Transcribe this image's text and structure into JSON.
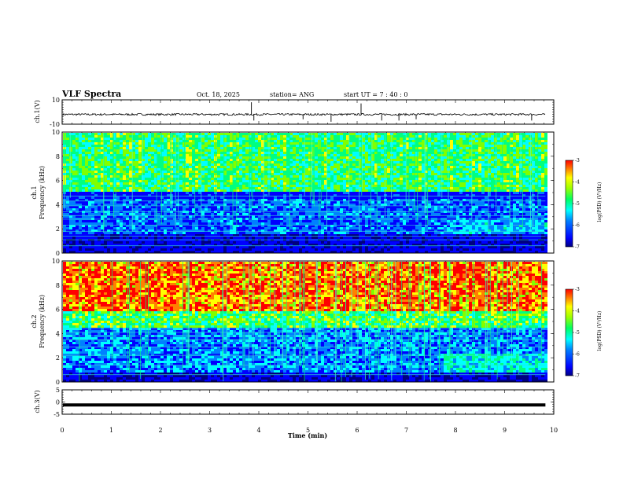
{
  "header": {
    "title": "VLF Spectra",
    "date": "Oct. 18, 2025",
    "station": "station= ANG",
    "start": "start  UT =   7 : 40 : 0"
  },
  "chart_data": [
    {
      "type": "line",
      "name": "ch1-waveform",
      "ylabel": "ch.1(V)",
      "ylim": [
        -10,
        10
      ],
      "yticks": [
        "10",
        "-10"
      ],
      "baseline": -2,
      "spikes": [
        {
          "x": 3.85,
          "y": 8
        },
        {
          "x": 3.9,
          "y": -7
        },
        {
          "x": 6.08,
          "y": 7
        },
        {
          "x": 5.47,
          "y": -8
        },
        {
          "x": 6.5,
          "y": -7
        },
        {
          "x": 6.85,
          "y": -7
        },
        {
          "x": 7.2,
          "y": -6
        },
        {
          "x": 9.55,
          "y": -7
        },
        {
          "x": 4.9,
          "y": -6
        }
      ]
    },
    {
      "type": "heatmap",
      "name": "ch1-spectrogram",
      "ylabel": "Frequency (kHz)",
      "channel_label": "ch.1",
      "ylim": [
        0,
        10
      ],
      "yticks": [
        "0",
        "2",
        "4",
        "6",
        "8",
        "10"
      ],
      "colorbar": {
        "label": "log(PSD) (V²/Hz)",
        "range": [
          -7,
          -3
        ],
        "ticks": [
          "-3",
          "-4",
          "-5",
          "-6",
          "-7"
        ]
      },
      "hum_lines_khz": [
        0.6,
        1.1,
        1.4,
        1.8,
        2.3,
        2.8,
        3.1,
        3.4,
        3.9,
        4.3,
        4.7
      ]
    },
    {
      "type": "heatmap",
      "name": "ch2-spectrogram",
      "ylabel": "Frequency (kHz)",
      "channel_label": "ch.2",
      "ylim": [
        0,
        10
      ],
      "yticks": [
        "0",
        "2",
        "4",
        "6",
        "8",
        "10"
      ],
      "colorbar": {
        "label": "log(PSD) (V²/Hz)",
        "range": [
          -7,
          -3
        ],
        "ticks": [
          "-3",
          "-4",
          "-5",
          "-6",
          "-7"
        ]
      },
      "hum_lines_khz": [
        0.6,
        1.4,
        2.2,
        2.9,
        3.5,
        3.8,
        4.1,
        4.4
      ]
    },
    {
      "type": "line",
      "name": "ch3-waveform",
      "ylabel": "ch.3(V)",
      "ylim": [
        -5,
        5
      ],
      "yticks": [
        "5",
        "0",
        "-5"
      ],
      "baseline": -1.2
    }
  ],
  "xaxis": {
    "label": "Time  (min)",
    "range": [
      0,
      10
    ],
    "ticks": [
      "0",
      "1",
      "2",
      "3",
      "4",
      "5",
      "6",
      "7",
      "8",
      "9",
      "10"
    ],
    "data_end": 9.83
  },
  "colors": {
    "spectrum": [
      "#000080",
      "#0000ff",
      "#0080ff",
      "#00ffff",
      "#00ff80",
      "#80ff00",
      "#ffff00",
      "#ff8000",
      "#ff0000"
    ],
    "background": "#ffffff",
    "ink": "#000000"
  }
}
